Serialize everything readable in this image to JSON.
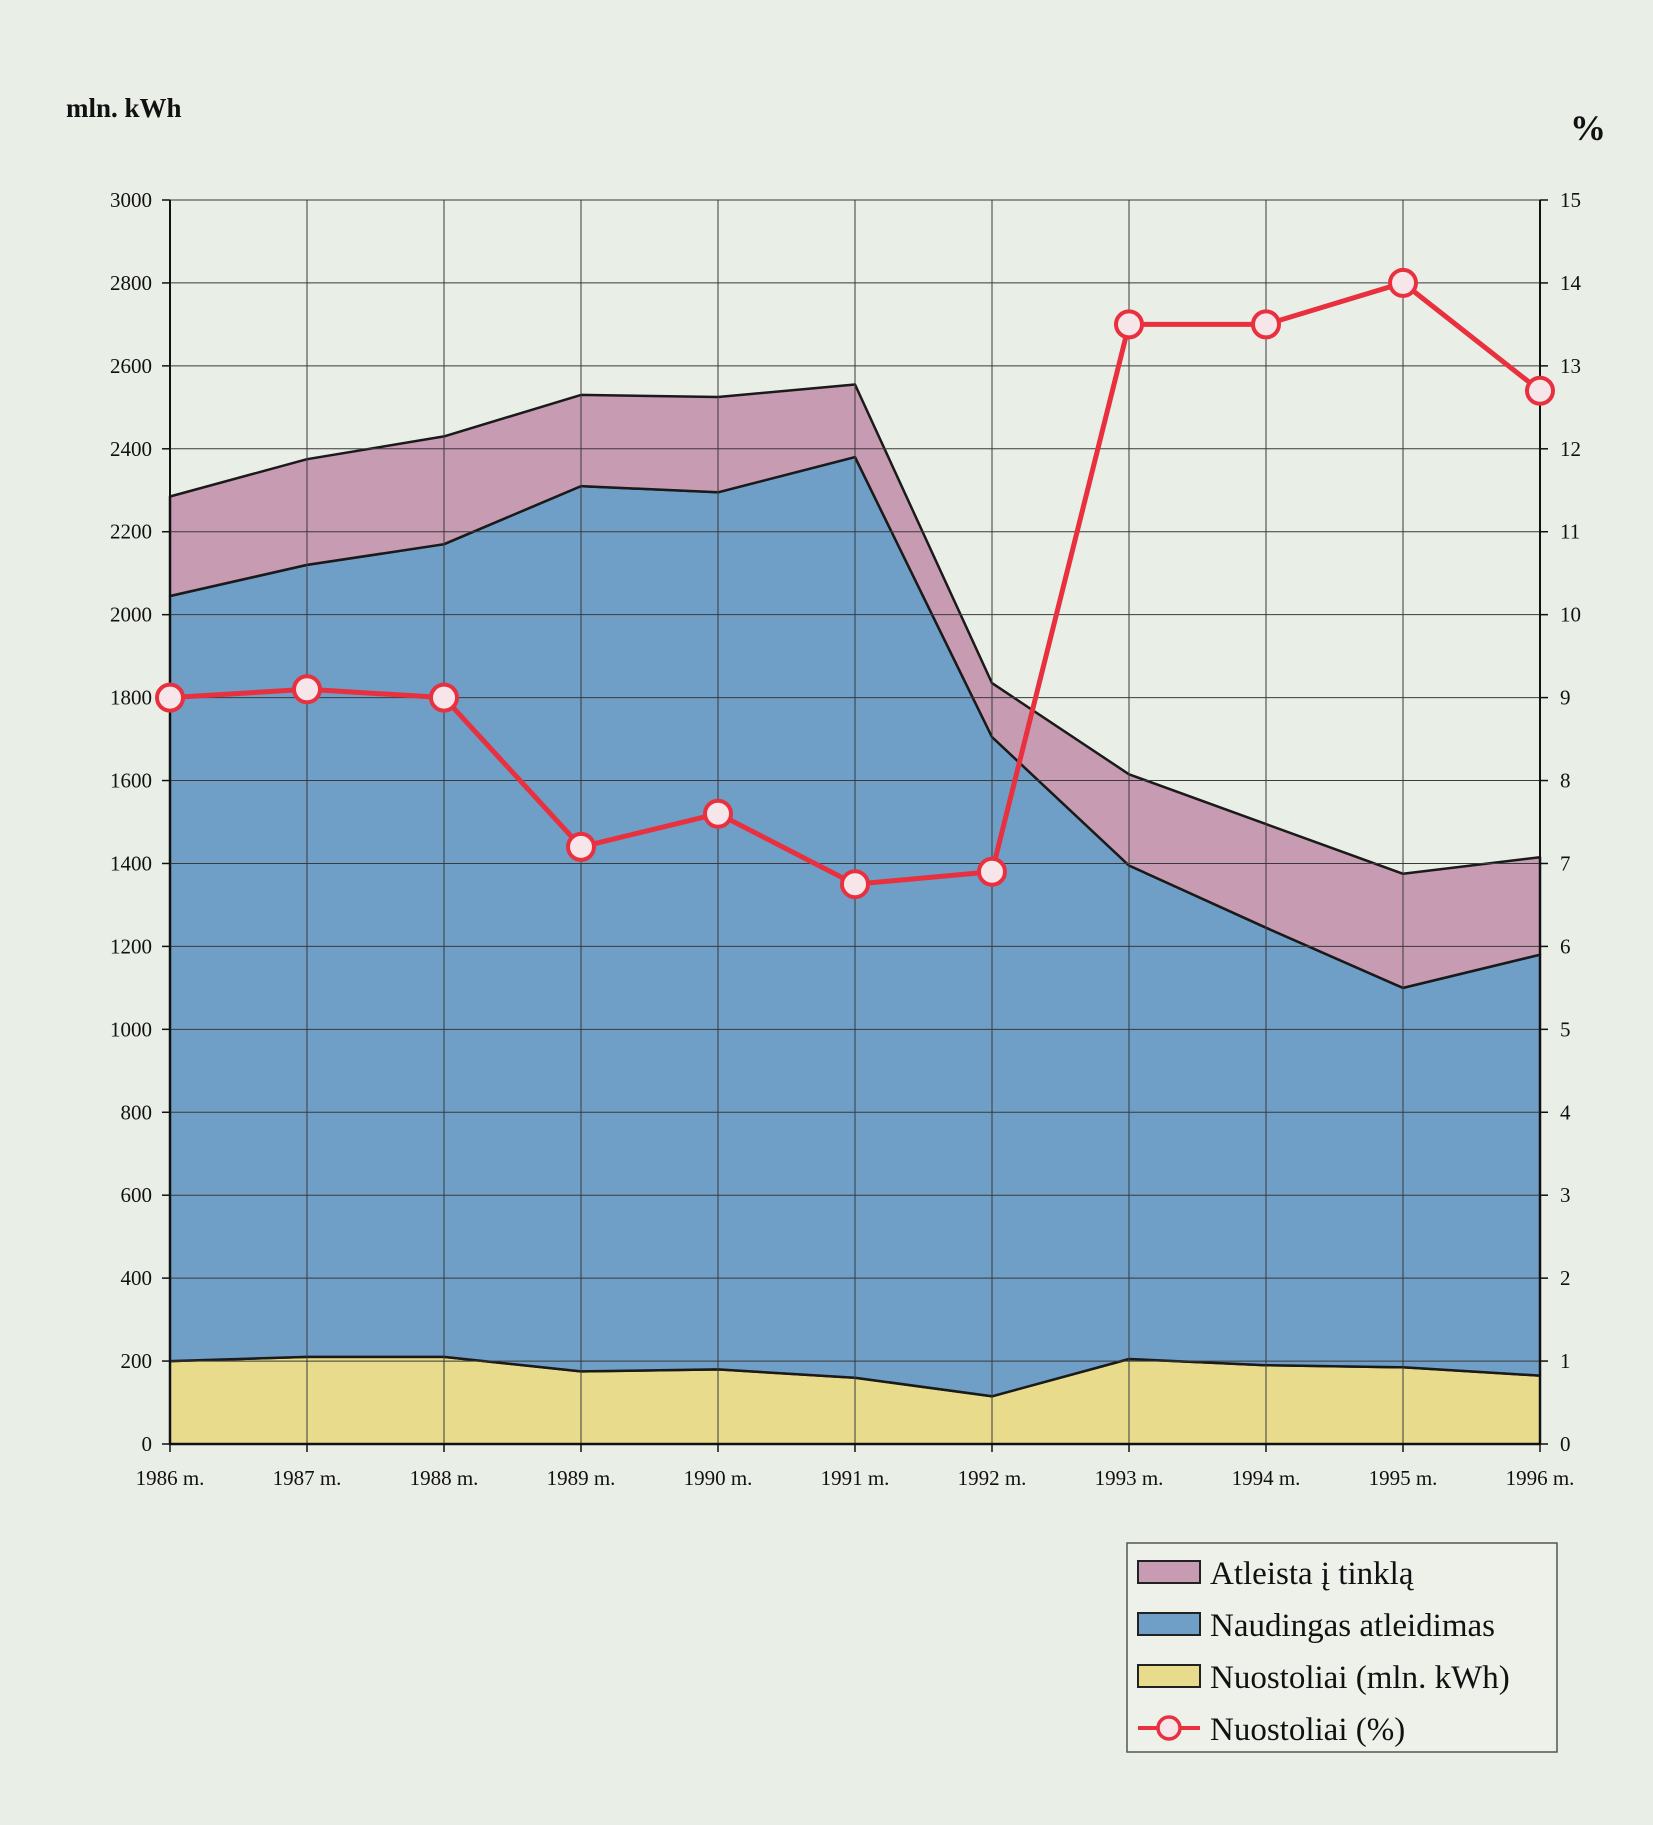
{
  "chart_data": {
    "type": "area",
    "left_axis_label": "mln. kWh",
    "right_axis_label": "%",
    "categories": [
      "1986 m.",
      "1987 m.",
      "1988 m.",
      "1989 m.",
      "1990 m.",
      "1991 m.",
      "1992 m.",
      "1993 m.",
      "1994 m.",
      "1995 m.",
      "1996 m."
    ],
    "y_left": {
      "min": 0,
      "max": 3000,
      "ticks": [
        0,
        200,
        400,
        600,
        800,
        1000,
        1200,
        1400,
        1600,
        1800,
        2000,
        2200,
        2400,
        2600,
        2800,
        3000
      ]
    },
    "y_right": {
      "min": 0,
      "max": 15,
      "ticks": [
        0,
        1,
        2,
        3,
        4,
        5,
        6,
        7,
        8,
        9,
        10,
        11,
        12,
        13,
        14,
        15
      ]
    },
    "grid": true,
    "legend_position": "bottom-right",
    "stacked_series": [
      {
        "name": "Nuostoliai (mln. kWh)",
        "color": "#e8dc8c",
        "values": [
          200,
          210,
          210,
          175,
          180,
          160,
          115,
          205,
          190,
          185,
          165
        ]
      },
      {
        "name": "Naudingas atleidimas",
        "color": "#6f9ec6",
        "values": [
          1845,
          1910,
          1960,
          2135,
          2115,
          2220,
          1590,
          1190,
          1055,
          915,
          1015
        ]
      },
      {
        "name": "Atleista į tinklą",
        "color": "#c79bb1",
        "values": [
          240,
          255,
          260,
          220,
          230,
          175,
          130,
          220,
          250,
          275,
          235
        ]
      }
    ],
    "line_series": {
      "name": "Nuostoliai (%)",
      "axis": "right",
      "color": "#e8303f",
      "values": [
        9.0,
        9.1,
        9.0,
        7.2,
        7.6,
        6.75,
        6.9,
        13.5,
        13.5,
        14.0,
        12.7
      ]
    },
    "legend": [
      {
        "label": "Atleista į  tinklą",
        "kind": "box",
        "color": "#c79bb1"
      },
      {
        "label": "Naudingas atleidimas",
        "kind": "box",
        "color": "#6f9ec6"
      },
      {
        "label": "Nuostoliai (mln. kWh)",
        "kind": "box",
        "color": "#e8dc8c"
      },
      {
        "label": "Nuostoliai (%)",
        "kind": "line",
        "color": "#e8303f"
      }
    ]
  }
}
